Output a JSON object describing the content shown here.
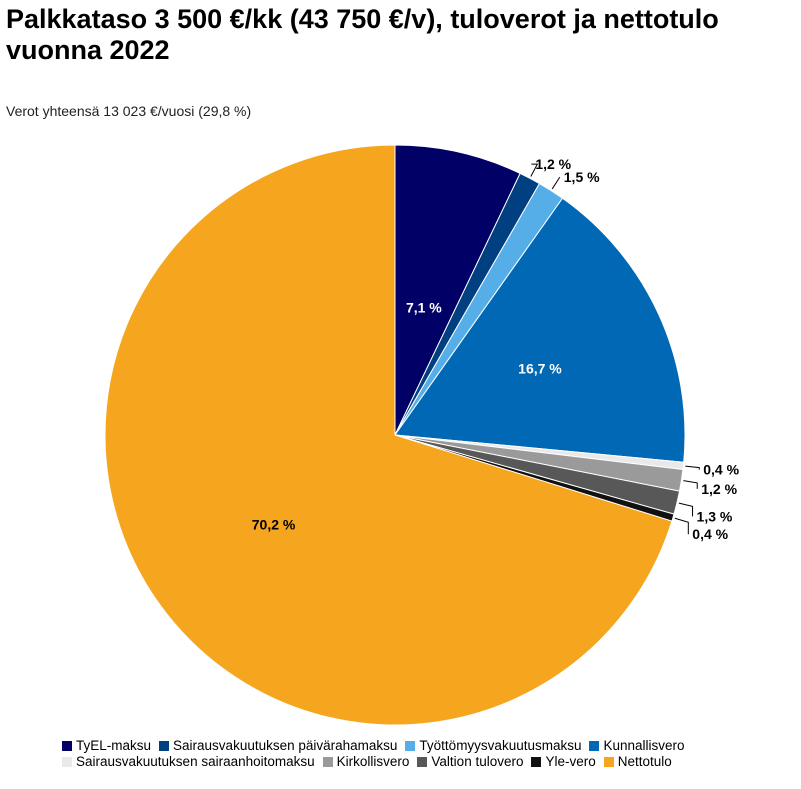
{
  "chart_data": {
    "type": "pie",
    "title": "Palkkataso 3 500 €/kk (43 750 €/v), tuloverot ja nettotulo vuonna 2022",
    "subtitle": "Verot yhteensä 13 023 €/vuosi (29,8 %)",
    "slices": [
      {
        "name": "TyEL-maksu",
        "value": 7.1,
        "label": "7,1 %",
        "color": "#000066"
      },
      {
        "name": "Sairausvakuutuksen päivärahamaksu",
        "value": 1.2,
        "label": "1,2 %",
        "color": "#003f80"
      },
      {
        "name": "Työttömyysvakuutusmaksu",
        "value": 1.5,
        "label": "1,5 %",
        "color": "#55aee8"
      },
      {
        "name": "Kunnallisvero",
        "value": 16.7,
        "label": "16,7 %",
        "color": "#0068b4"
      },
      {
        "name": "Sairausvakuutuksen sairaanhoitomaksu",
        "value": 0.4,
        "label": "0,4 %",
        "color": "#e9e9e9"
      },
      {
        "name": "Kirkollisvero",
        "value": 1.2,
        "label": "1,2 %",
        "color": "#9a9a9a"
      },
      {
        "name": "Valtion tulovero",
        "value": 1.3,
        "label": "1,3 %",
        "color": "#585858"
      },
      {
        "name": "Yle-vero",
        "value": 0.4,
        "label": "0,4 %",
        "color": "#111111"
      },
      {
        "name": "Nettotulo",
        "value": 70.2,
        "label": "70,2 %",
        "color": "#f5a61e"
      }
    ],
    "legend_position": "bottom"
  }
}
